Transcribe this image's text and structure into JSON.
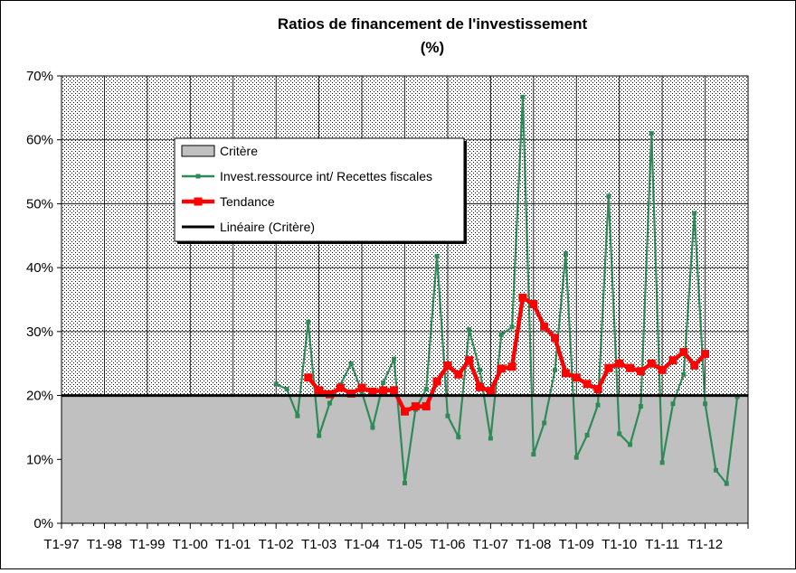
{
  "chart_data": {
    "type": "line",
    "title": "Ratios de financement de l'investissement",
    "subtitle": "(%)",
    "xlabel": "",
    "ylabel": "",
    "ylim": [
      0,
      70
    ],
    "ytick_labels": [
      "0%",
      "10%",
      "20%",
      "30%",
      "40%",
      "50%",
      "60%",
      "70%"
    ],
    "x_tick_labels": [
      "T1-97",
      "T1-98",
      "T1-99",
      "T1-00",
      "T1-01",
      "T1-02",
      "T1-03",
      "T1-04",
      "T1-05",
      "T1-06",
      "T1-07",
      "T1-08",
      "T1-09",
      "T1-10",
      "T1-11",
      "T1-12"
    ],
    "quarters_per_year": 4,
    "grid": true,
    "legend_position": "upper-left",
    "series": [
      {
        "name": "Critère",
        "kind": "area",
        "color": "#c0c0c0",
        "start_index": 0,
        "values": [
          20,
          20,
          20,
          20,
          20,
          20,
          20,
          20,
          20,
          20,
          20,
          20,
          20,
          20,
          20,
          20,
          20,
          20,
          20,
          20,
          20,
          20,
          20,
          20,
          20,
          20,
          20,
          20,
          20,
          20,
          20,
          20,
          20,
          20,
          20,
          20,
          20,
          20,
          20,
          20,
          20,
          20,
          20,
          20,
          20,
          20,
          20,
          20,
          20,
          20,
          20,
          20,
          20,
          20,
          20,
          20,
          20,
          20,
          20,
          20,
          20,
          20,
          20,
          20
        ]
      },
      {
        "name": "Invest.ressource int/ Recettes fiscales",
        "kind": "line",
        "color": "#2e8b57",
        "start_index": 20,
        "values": [
          21.8,
          21.0,
          16.8,
          31.5,
          13.7,
          18.8,
          21.7,
          25.0,
          20.5,
          15.0,
          22.0,
          25.7,
          6.3,
          17.8,
          21.0,
          41.8,
          16.8,
          13.5,
          30.3,
          24.0,
          13.3,
          29.5,
          30.7,
          66.7,
          10.8,
          15.7,
          24.0,
          42.2,
          10.3,
          13.8,
          18.5,
          51.2,
          14.0,
          12.3,
          18.3,
          61.0,
          9.5,
          18.7,
          23.3,
          48.5,
          18.7,
          8.3,
          6.2,
          19.8
        ]
      },
      {
        "name": "Tendance",
        "kind": "line",
        "color": "#ff0000",
        "start_index": 23,
        "values": [
          22.8,
          20.8,
          20.2,
          21.2,
          20.3,
          21.2,
          20.6,
          20.8,
          20.8,
          17.5,
          18.3,
          18.3,
          22.2,
          24.7,
          23.3,
          25.5,
          21.3,
          20.7,
          24.2,
          24.5,
          35.3,
          34.3,
          30.8,
          29.0,
          23.5,
          22.8,
          21.8,
          21.0,
          24.3,
          25.0,
          24.3,
          23.8,
          25.0,
          24.0,
          25.5,
          26.8,
          24.7,
          26.5
        ]
      },
      {
        "name": "Linéaire (Critère)",
        "kind": "line",
        "color": "#000000",
        "start_index": 0,
        "values": [
          20,
          20,
          20,
          20,
          20,
          20,
          20,
          20,
          20,
          20,
          20,
          20,
          20,
          20,
          20,
          20,
          20,
          20,
          20,
          20,
          20,
          20,
          20,
          20,
          20,
          20,
          20,
          20,
          20,
          20,
          20,
          20,
          20,
          20,
          20,
          20,
          20,
          20,
          20,
          20,
          20,
          20,
          20,
          20,
          20,
          20,
          20,
          20,
          20,
          20,
          20,
          20,
          20,
          20,
          20,
          20,
          20,
          20,
          20,
          20,
          20,
          20,
          20,
          20
        ]
      }
    ]
  }
}
